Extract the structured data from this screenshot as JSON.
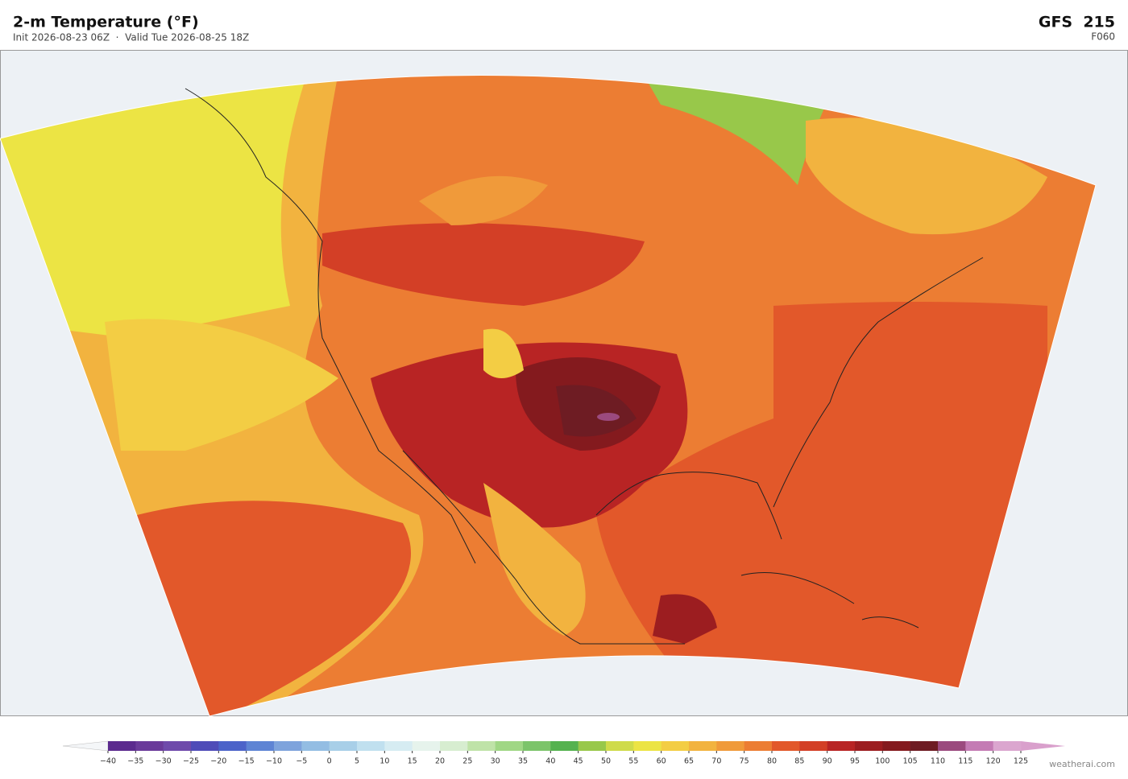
{
  "header": {
    "title": "2-m Temperature  (°F)",
    "subtitle": "Init 2026-08-23 06Z  ·  Valid Tue 2026-08-25 18Z",
    "model": "GFS  215",
    "forecast_hour": "F060"
  },
  "colorbar": {
    "ticks": [
      {
        "value": -40,
        "label": "−40"
      },
      {
        "value": -35,
        "label": "−35"
      },
      {
        "value": -30,
        "label": "−30"
      },
      {
        "value": -25,
        "label": "−25"
      },
      {
        "value": -20,
        "label": "−20"
      },
      {
        "value": -15,
        "label": "−15"
      },
      {
        "value": -10,
        "label": "−10"
      },
      {
        "value": -5,
        "label": "−5"
      },
      0,
      5,
      10,
      15,
      20,
      25,
      30,
      35,
      40,
      45,
      50,
      55,
      60,
      65,
      70,
      75,
      80,
      85,
      90,
      95,
      100,
      105,
      110,
      115,
      120,
      125
    ],
    "colors": [
      "#5b2a8e",
      "#6a3a9a",
      "#6f4aab",
      "#4f4cb8",
      "#4c63c9",
      "#5e84d4",
      "#7ea3dc",
      "#93bde3",
      "#a8cfe8",
      "#c0e0ef",
      "#d6ecf2",
      "#e6f3ec",
      "#d7edd0",
      "#bfe3a8",
      "#a0d785",
      "#7cc46a",
      "#55b24f",
      "#98c84a",
      "#cfdb4a",
      "#ece444",
      "#f3cd44",
      "#f2b33f",
      "#f09a3a",
      "#ec7d33",
      "#e2582a",
      "#d33f26",
      "#b82424",
      "#9c1d20",
      "#841a1e",
      "#6e1c23",
      "#9b4a7e",
      "#c47bb4",
      "#dba6cf"
    ],
    "under_color": "#f4f6f8",
    "over_color": "#d9a0cc"
  },
  "credit": "weatherai.com"
}
